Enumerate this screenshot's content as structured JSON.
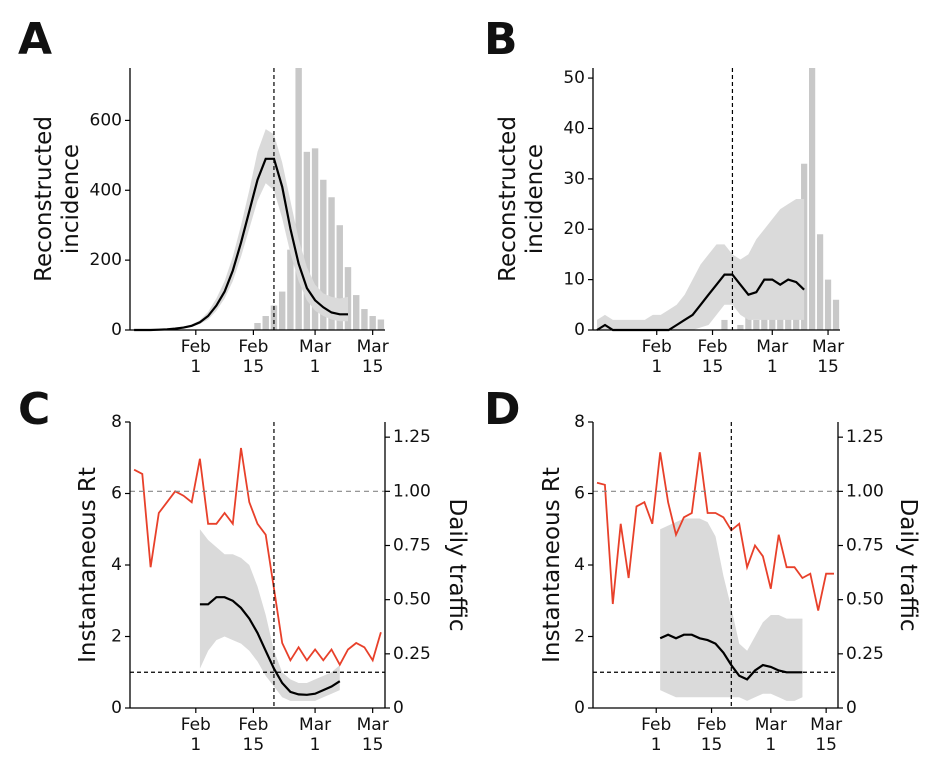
{
  "chart_data": [
    {
      "type": "combo",
      "panel_label": "A",
      "ylabel": "Reconstructed\nincidence",
      "x": [
        "Jan 17",
        "Jan 19",
        "Jan 21",
        "Jan 23",
        "Jan 25",
        "Jan 27",
        "Jan 29",
        "Jan 31",
        "Feb 2",
        "Feb 4",
        "Feb 6",
        "Feb 8",
        "Feb 10",
        "Feb 12",
        "Feb 14",
        "Feb 16",
        "Feb 18",
        "Feb 20",
        "Feb 22",
        "Feb 24",
        "Feb 26",
        "Feb 28",
        "Mar 1",
        "Mar 3",
        "Mar 5",
        "Mar 7",
        "Mar 9",
        "Mar 11",
        "Mar 13",
        "Mar 15",
        "Mar 17"
      ],
      "xlim": [
        "Jan 16",
        "Mar 18"
      ],
      "xticks": [
        {
          "value": "Feb 1",
          "label": "Feb\n1"
        },
        {
          "value": "Feb 15",
          "label": "Feb\n15"
        },
        {
          "value": "Mar 1",
          "label": "Mar\n1"
        },
        {
          "value": "Mar 15",
          "label": "Mar\n15"
        }
      ],
      "ylim": [
        0,
        750
      ],
      "yticks": [
        0,
        200,
        400,
        600
      ],
      "vline": "Feb 20",
      "series": [
        {
          "style": "bar",
          "color": "#c8c8c8",
          "values": [
            0,
            0,
            0,
            0,
            0,
            0,
            0,
            0,
            0,
            0,
            0,
            0,
            0,
            0,
            0,
            20,
            40,
            70,
            110,
            230,
            750,
            510,
            520,
            430,
            380,
            300,
            180,
            100,
            60,
            40,
            30
          ]
        },
        {
          "style": "band",
          "color": "#dadada",
          "lower": [
            0,
            0,
            0,
            0,
            1,
            3,
            5,
            9,
            17,
            30,
            55,
            90,
            140,
            210,
            290,
            370,
            420,
            400,
            320,
            220,
            140,
            85,
            55,
            40,
            30,
            25,
            25,
            null,
            null,
            null,
            null
          ],
          "upper": [
            0,
            0,
            1,
            2,
            3,
            6,
            10,
            16,
            28,
            52,
            90,
            140,
            210,
            300,
            400,
            510,
            575,
            560,
            480,
            370,
            260,
            180,
            130,
            105,
            95,
            90,
            95,
            null,
            null,
            null,
            null
          ]
        },
        {
          "style": "line",
          "color": "#000000",
          "values": [
            0,
            0,
            0,
            1,
            2,
            4,
            7,
            12,
            22,
            40,
            70,
            110,
            170,
            250,
            340,
            430,
            490,
            490,
            410,
            290,
            190,
            120,
            85,
            65,
            50,
            45,
            45,
            null,
            null,
            null,
            null
          ]
        }
      ]
    },
    {
      "type": "combo",
      "panel_label": "B",
      "ylabel": "Reconstructed\nincidence",
      "x": [
        "Jan 17",
        "Jan 19",
        "Jan 21",
        "Jan 23",
        "Jan 25",
        "Jan 27",
        "Jan 29",
        "Jan 31",
        "Feb 2",
        "Feb 4",
        "Feb 6",
        "Feb 8",
        "Feb 10",
        "Feb 12",
        "Feb 14",
        "Feb 16",
        "Feb 18",
        "Feb 20",
        "Feb 22",
        "Feb 24",
        "Feb 26",
        "Feb 28",
        "Mar 1",
        "Mar 3",
        "Mar 5",
        "Mar 7",
        "Mar 9",
        "Mar 11",
        "Mar 13",
        "Mar 15",
        "Mar 17"
      ],
      "xlim": [
        "Jan 16",
        "Mar 18"
      ],
      "xticks": [
        {
          "value": "Feb 1",
          "label": "Feb\n1"
        },
        {
          "value": "Feb 15",
          "label": "Feb\n15"
        },
        {
          "value": "Mar 1",
          "label": "Mar\n1"
        },
        {
          "value": "Mar 15",
          "label": "Mar\n15"
        }
      ],
      "ylim": [
        0,
        52
      ],
      "yticks": [
        0,
        10,
        20,
        30,
        40,
        50
      ],
      "vline": "Feb 20",
      "series": [
        {
          "style": "bar",
          "color": "#c8c8c8",
          "values": [
            0,
            0,
            0,
            0,
            0,
            0,
            0,
            2,
            0,
            0,
            0,
            0,
            0,
            0,
            0,
            0,
            2,
            0,
            1,
            3,
            2,
            4,
            8,
            6,
            10,
            9,
            33,
            52,
            19,
            10,
            6
          ]
        },
        {
          "style": "band",
          "color": "#dadada",
          "lower": [
            0,
            0,
            0,
            0,
            0,
            0,
            0,
            0,
            0,
            0,
            0,
            0,
            0,
            0.5,
            1,
            3,
            5,
            5,
            3,
            2,
            2,
            2,
            2,
            2,
            2,
            2,
            2,
            null,
            null,
            null,
            null
          ],
          "upper": [
            2,
            3,
            2,
            2,
            2,
            2,
            2,
            3,
            3,
            4,
            5,
            7,
            10,
            13,
            15,
            17,
            17,
            15,
            14,
            15,
            18,
            20,
            22,
            24,
            25,
            26,
            26,
            null,
            null,
            null,
            null
          ]
        },
        {
          "style": "line",
          "color": "#000000",
          "values": [
            0,
            1,
            0,
            0,
            0,
            0,
            0,
            0,
            0,
            0,
            1,
            2,
            3,
            5,
            7,
            9,
            11,
            11,
            9,
            7,
            7.5,
            10,
            10,
            9,
            10,
            9.5,
            8,
            null,
            null,
            null,
            null
          ]
        }
      ]
    },
    {
      "type": "dual-axis",
      "panel_label": "C",
      "ylabel": "Instantaneous Rt",
      "y2label": "Daily traffic",
      "x": [
        "Jan 17",
        "Jan 19",
        "Jan 21",
        "Jan 23",
        "Jan 25",
        "Jan 27",
        "Jan 29",
        "Jan 31",
        "Feb 2",
        "Feb 4",
        "Feb 6",
        "Feb 8",
        "Feb 10",
        "Feb 12",
        "Feb 14",
        "Feb 16",
        "Feb 18",
        "Feb 20",
        "Feb 22",
        "Feb 24",
        "Feb 26",
        "Feb 28",
        "Mar 1",
        "Mar 3",
        "Mar 5",
        "Mar 7",
        "Mar 9",
        "Mar 11",
        "Mar 13",
        "Mar 15",
        "Mar 17"
      ],
      "xlim": [
        "Jan 16",
        "Mar 18"
      ],
      "xticks": [
        {
          "value": "Feb 1",
          "label": "Feb\n1"
        },
        {
          "value": "Feb 15",
          "label": "Feb\n15"
        },
        {
          "value": "Mar 1",
          "label": "Mar\n1"
        },
        {
          "value": "Mar 15",
          "label": "Mar\n15"
        }
      ],
      "ylim": [
        0,
        8
      ],
      "yticks": [
        0,
        2,
        4,
        6,
        8
      ],
      "y2lim": [
        0,
        1.32
      ],
      "y2ticks": [
        0,
        0.25,
        {
          "value": 0.5,
          "label": "0.50"
        },
        0.75,
        {
          "value": 1,
          "label": "1.00"
        },
        1.25
      ],
      "vline": "Feb 20",
      "hline": 1,
      "y2hline": 1,
      "series": [
        {
          "style": "band",
          "color": "#dadada",
          "lower": [
            null,
            null,
            null,
            null,
            null,
            null,
            null,
            null,
            1.1,
            1.6,
            1.9,
            2.0,
            1.9,
            1.8,
            1.6,
            1.3,
            0.9,
            0.6,
            0.3,
            0.2,
            0.2,
            0.2,
            0.2,
            0.3,
            0.4,
            0.5,
            null,
            null,
            null,
            null,
            null
          ],
          "upper": [
            null,
            null,
            null,
            null,
            null,
            null,
            null,
            null,
            5.0,
            4.7,
            4.5,
            4.3,
            4.3,
            4.2,
            4.0,
            3.4,
            2.6,
            1.6,
            1.0,
            0.8,
            0.7,
            0.7,
            0.8,
            0.9,
            1.0,
            1.2,
            null,
            null,
            null,
            null,
            null
          ]
        },
        {
          "style": "line",
          "color": "#000000",
          "values": [
            null,
            null,
            null,
            null,
            null,
            null,
            null,
            null,
            2.9,
            2.9,
            3.1,
            3.1,
            3.0,
            2.8,
            2.5,
            2.1,
            1.6,
            1.1,
            0.7,
            0.45,
            0.38,
            0.37,
            0.4,
            0.5,
            0.6,
            0.75,
            null,
            null,
            null,
            null,
            null
          ]
        },
        {
          "style": "line",
          "color": "#e8402a",
          "axis": "y2",
          "values": [
            1.1,
            1.08,
            0.65,
            0.9,
            0.95,
            1.0,
            0.98,
            0.95,
            1.15,
            0.85,
            0.85,
            0.9,
            0.85,
            1.2,
            0.95,
            0.85,
            0.8,
            0.55,
            0.3,
            0.22,
            0.28,
            0.22,
            0.27,
            0.22,
            0.27,
            0.2,
            0.27,
            0.3,
            0.28,
            0.22,
            0.35
          ]
        }
      ]
    },
    {
      "type": "dual-axis",
      "panel_label": "D",
      "ylabel": "Instantaneous Rt",
      "y2label": "Daily traffic",
      "x": [
        "Jan 17",
        "Jan 19",
        "Jan 21",
        "Jan 23",
        "Jan 25",
        "Jan 27",
        "Jan 29",
        "Jan 31",
        "Feb 2",
        "Feb 4",
        "Feb 6",
        "Feb 8",
        "Feb 10",
        "Feb 12",
        "Feb 14",
        "Feb 16",
        "Feb 18",
        "Feb 20",
        "Feb 22",
        "Feb 24",
        "Feb 26",
        "Feb 28",
        "Mar 1",
        "Mar 3",
        "Mar 5",
        "Mar 7",
        "Mar 9",
        "Mar 11",
        "Mar 13",
        "Mar 15",
        "Mar 17"
      ],
      "xlim": [
        "Jan 16",
        "Mar 18"
      ],
      "xticks": [
        {
          "value": "Feb 1",
          "label": "Feb\n1"
        },
        {
          "value": "Feb 15",
          "label": "Feb\n15"
        },
        {
          "value": "Mar 1",
          "label": "Mar\n1"
        },
        {
          "value": "Mar 15",
          "label": "Mar\n15"
        }
      ],
      "ylim": [
        0,
        8
      ],
      "yticks": [
        0,
        2,
        4,
        6,
        8
      ],
      "y2lim": [
        0,
        1.32
      ],
      "y2ticks": [
        0,
        0.25,
        {
          "value": 0.5,
          "label": "0.50"
        },
        0.75,
        {
          "value": 1,
          "label": "1.00"
        },
        1.25
      ],
      "vline": "Feb 20",
      "hline": 1,
      "y2hline": 1,
      "series": [
        {
          "style": "band",
          "color": "#dadada",
          "lower": [
            null,
            null,
            null,
            null,
            null,
            null,
            null,
            null,
            0.5,
            0.4,
            0.3,
            0.3,
            0.3,
            0.3,
            0.3,
            0.3,
            0.3,
            0.3,
            0.3,
            0.2,
            0.3,
            0.4,
            0.4,
            0.3,
            0.2,
            0.2,
            0.3,
            null,
            null,
            null,
            null
          ],
          "upper": [
            null,
            null,
            null,
            null,
            null,
            null,
            null,
            null,
            5.0,
            5.1,
            5.2,
            5.3,
            5.3,
            5.3,
            5.2,
            4.8,
            3.7,
            2.8,
            1.8,
            1.6,
            2.0,
            2.4,
            2.6,
            2.6,
            2.5,
            2.5,
            2.5,
            null,
            null,
            null,
            null
          ]
        },
        {
          "style": "line",
          "color": "#000000",
          "values": [
            null,
            null,
            null,
            null,
            null,
            null,
            null,
            null,
            1.95,
            2.05,
            1.95,
            2.05,
            2.05,
            1.95,
            1.9,
            1.8,
            1.55,
            1.2,
            0.9,
            0.8,
            1.05,
            1.2,
            1.15,
            1.05,
            1.0,
            1.0,
            1.0,
            null,
            null,
            null,
            null
          ]
        },
        {
          "style": "line",
          "color": "#e8402a",
          "axis": "y2",
          "values": [
            1.04,
            1.03,
            0.48,
            0.85,
            0.6,
            0.93,
            0.95,
            0.85,
            1.18,
            0.95,
            0.8,
            0.88,
            0.9,
            1.18,
            0.9,
            0.9,
            0.88,
            0.82,
            0.85,
            0.65,
            0.75,
            0.7,
            0.55,
            0.8,
            0.65,
            0.65,
            0.6,
            0.62,
            0.45,
            0.62,
            0.62
          ]
        }
      ]
    }
  ]
}
